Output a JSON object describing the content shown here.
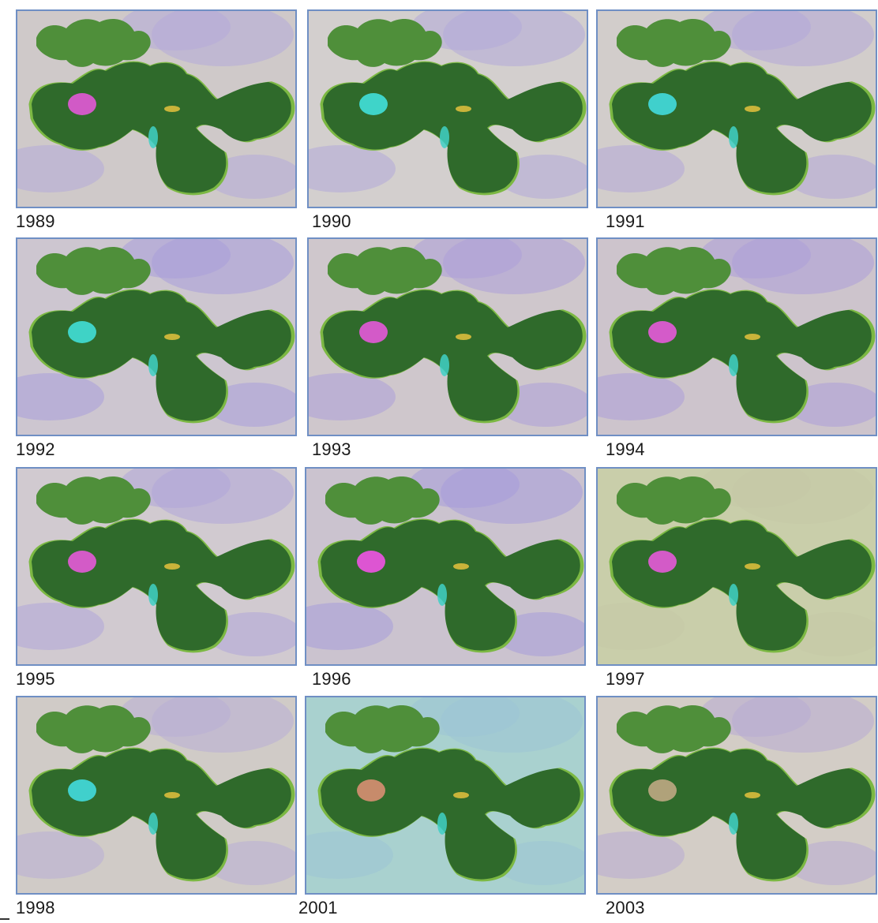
{
  "panels": [
    {
      "year": "1989",
      "bg": "#cfc9c9",
      "tint": "#b5a9d8",
      "patch": "#d15ac6"
    },
    {
      "year": "1990",
      "bg": "#d3cfce",
      "tint": "#b3aad9",
      "patch": "#3fd4c9"
    },
    {
      "year": "1991",
      "bg": "#d2cdcb",
      "tint": "#b2a8d8",
      "patch": "#40d0cc"
    },
    {
      "year": "1992",
      "bg": "#cdc6d0",
      "tint": "#a99fda",
      "patch": "#3fd3c6"
    },
    {
      "year": "1993",
      "bg": "#cfc7cc",
      "tint": "#ad9fd8",
      "patch": "#d35ac8"
    },
    {
      "year": "1994",
      "bg": "#cdc4cc",
      "tint": "#ad9ed9",
      "patch": "#d45bc9"
    },
    {
      "year": "1995",
      "bg": "#d1cad0",
      "tint": "#b1a6d8",
      "patch": "#d35bc7"
    },
    {
      "year": "1996",
      "bg": "#cbc3cf",
      "tint": "#a89ddb",
      "patch": "#dd55d2"
    },
    {
      "year": "1997",
      "bg": "#c9ceaa",
      "tint": "#c4c9a6",
      "patch": "#d35bc7"
    },
    {
      "year": "1998",
      "bg": "#d0cbc7",
      "tint": "#b8aed6",
      "patch": "#40d0cc"
    },
    {
      "year": "2001",
      "bg": "#a9d1cf",
      "tint": "#9cc4d6",
      "patch": "#c78b6b"
    },
    {
      "year": "2003",
      "bg": "#d3cdc6",
      "tint": "#b8acd3",
      "patch": "#b0a27a"
    }
  ],
  "colors": {
    "forest": "#2f6a2b",
    "forest_edge": "#4f8f3a",
    "light_green": "#7cb843",
    "frame": "#6f8fc4"
  }
}
